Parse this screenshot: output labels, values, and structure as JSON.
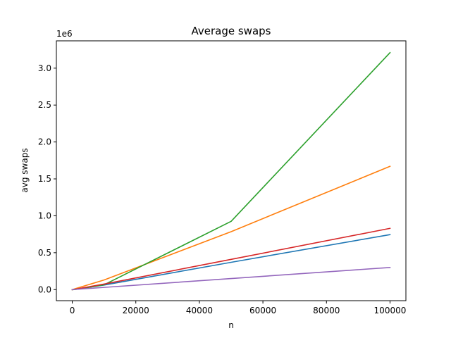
{
  "chart_data": {
    "type": "line",
    "title": "Average swaps",
    "xlabel": "n",
    "ylabel": "avg swaps",
    "y_scale_label": "1e6",
    "xlim": [
      -5000,
      105000
    ],
    "ylim": [
      -150000,
      3370000
    ],
    "grid": false,
    "legend": "none",
    "xticks": [
      0,
      20000,
      40000,
      60000,
      80000,
      100000
    ],
    "xtick_labels": [
      "0",
      "20000",
      "40000",
      "60000",
      "80000",
      "100000"
    ],
    "yticks": [
      0,
      500000,
      1000000,
      1500000,
      2000000,
      2500000,
      3000000
    ],
    "ytick_labels": [
      "0.0",
      "0.5",
      "1.0",
      "1.5",
      "2.0",
      "2.5",
      "3.0"
    ],
    "x": [
      10,
      100,
      1000,
      10000,
      50000,
      100000
    ],
    "series": [
      {
        "color": "#1f77b4",
        "values": [
          0,
          0,
          5000,
          62000,
          370000,
          745000
        ]
      },
      {
        "color": "#ff7f0e",
        "values": [
          0,
          0,
          13000,
          130000,
          785000,
          1670000
        ]
      },
      {
        "color": "#2ca02c",
        "values": [
          0,
          0,
          2000,
          65000,
          925000,
          3210000
        ]
      },
      {
        "color": "#d62728",
        "values": [
          0,
          0,
          6000,
          75000,
          410000,
          830000
        ]
      },
      {
        "color": "#9467bd",
        "values": [
          0,
          0,
          3000,
          30000,
          150000,
          300000
        ]
      }
    ]
  }
}
